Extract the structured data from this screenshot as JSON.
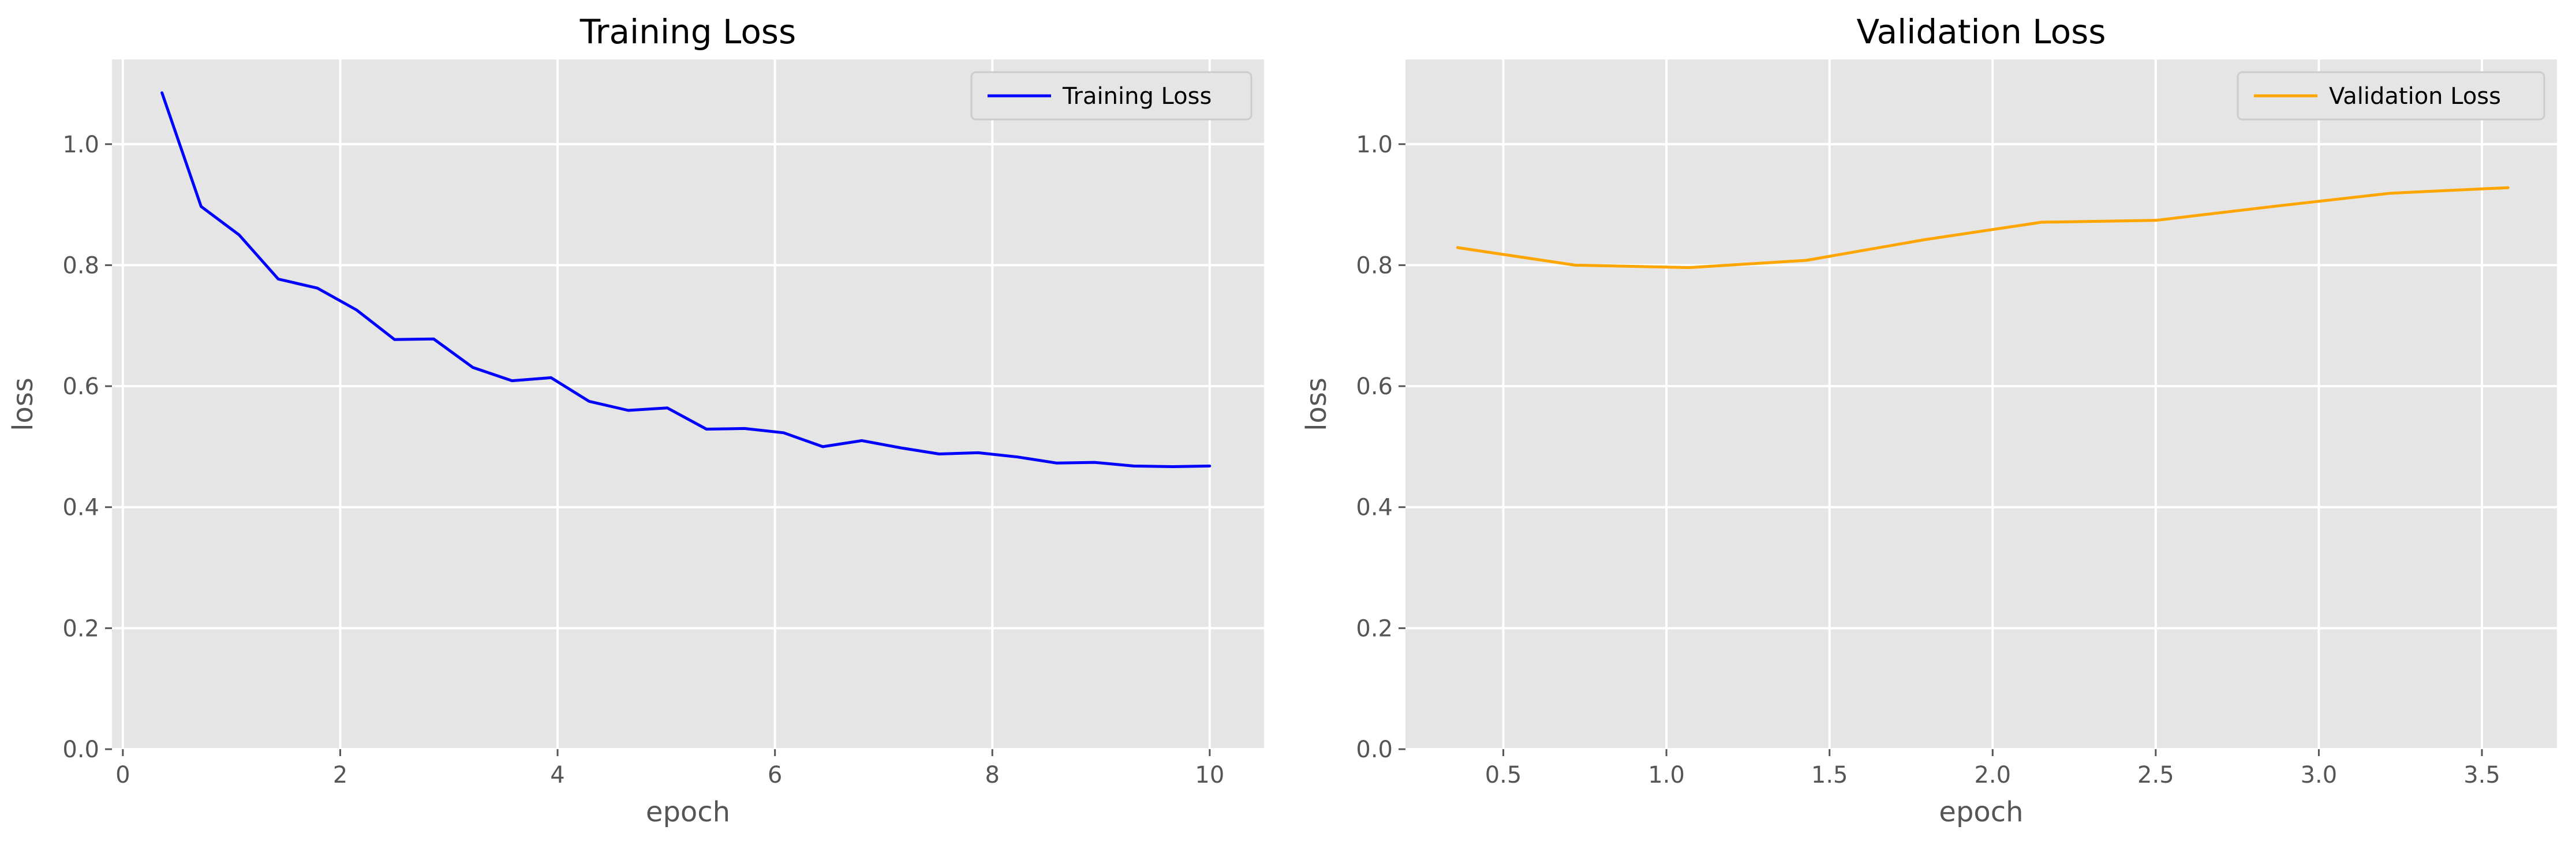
{
  "chart_data": [
    {
      "type": "line",
      "title": "Training Loss",
      "xlabel": "epoch",
      "ylabel": "loss",
      "xlim": [
        -0.1,
        10.5
      ],
      "ylim": [
        0.0,
        1.14
      ],
      "xticks": [
        0,
        2,
        4,
        6,
        8,
        10
      ],
      "xtick_labels": [
        "0",
        "2",
        "4",
        "6",
        "8",
        "10"
      ],
      "yticks": [
        0.0,
        0.2,
        0.4,
        0.6,
        0.8,
        1.0
      ],
      "ytick_labels": [
        "0.0",
        "0.2",
        "0.4",
        "0.6",
        "0.8",
        "1.0"
      ],
      "grid": true,
      "legend_position": "top-right",
      "series": [
        {
          "name": "Training Loss",
          "color": "#0000ff",
          "x": [
            0.36,
            0.72,
            1.07,
            1.43,
            1.79,
            2.15,
            2.5,
            2.86,
            3.22,
            3.58,
            3.94,
            4.29,
            4.65,
            5.01,
            5.37,
            5.72,
            6.08,
            6.44,
            6.8,
            7.16,
            7.51,
            7.87,
            8.23,
            8.59,
            8.94,
            9.3,
            9.66,
            10.0
          ],
          "y": [
            1.085,
            0.897,
            0.85,
            0.777,
            0.762,
            0.726,
            0.677,
            0.678,
            0.631,
            0.609,
            0.614,
            0.575,
            0.56,
            0.564,
            0.529,
            0.53,
            0.523,
            0.5,
            0.51,
            0.498,
            0.488,
            0.49,
            0.483,
            0.473,
            0.474,
            0.468,
            0.467,
            0.468
          ]
        }
      ]
    },
    {
      "type": "line",
      "title": "Validation Loss",
      "xlabel": "epoch",
      "ylabel": "loss",
      "xlim": [
        0.2,
        3.73
      ],
      "ylim": [
        0.0,
        1.14
      ],
      "xticks": [
        0.5,
        1.0,
        1.5,
        2.0,
        2.5,
        3.0,
        3.5
      ],
      "xtick_labels": [
        "0.5",
        "1.0",
        "1.5",
        "2.0",
        "2.5",
        "3.0",
        "3.5"
      ],
      "yticks": [
        0.0,
        0.2,
        0.4,
        0.6,
        0.8,
        1.0
      ],
      "ytick_labels": [
        "0.0",
        "0.2",
        "0.4",
        "0.6",
        "0.8",
        "1.0"
      ],
      "grid": true,
      "legend_position": "top-right",
      "series": [
        {
          "name": "Validation Loss",
          "color": "#ffa500",
          "x": [
            0.36,
            0.72,
            1.07,
            1.43,
            1.79,
            2.15,
            2.5,
            2.86,
            3.22,
            3.58
          ],
          "y": [
            0.829,
            0.8,
            0.796,
            0.808,
            0.842,
            0.871,
            0.874,
            0.897,
            0.919,
            0.928
          ]
        }
      ]
    }
  ]
}
